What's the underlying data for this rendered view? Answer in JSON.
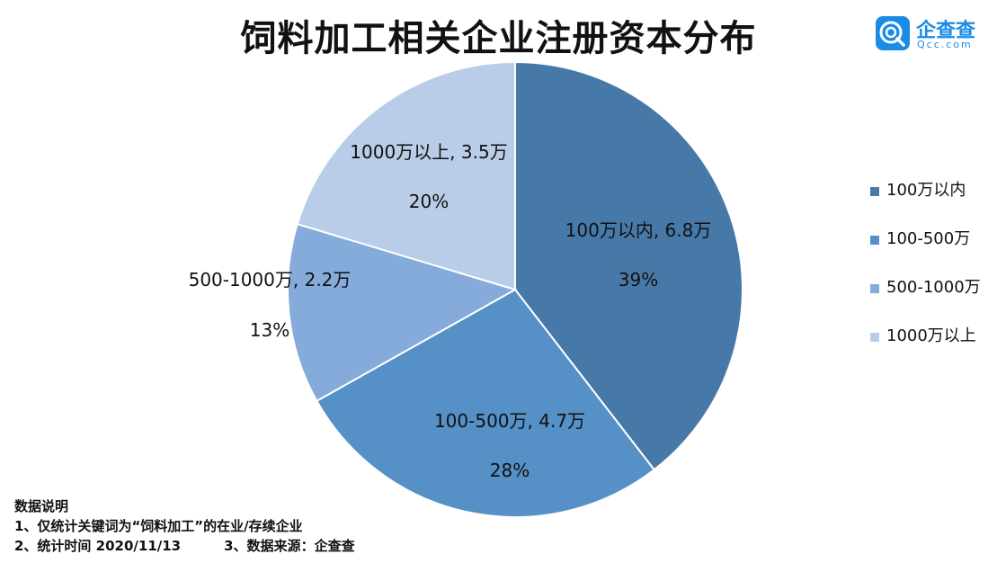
{
  "title": "饲料加工相关企业注册资本分布",
  "logo": {
    "name": "企查查",
    "url": "Qcc.com",
    "icon": "qcc-logo-icon",
    "color": "#1a8be6"
  },
  "chart_data": {
    "type": "pie",
    "title": "饲料加工相关企业注册资本分布",
    "categories": [
      "100万以内",
      "100-500万",
      "500-1000万",
      "1000万以上"
    ],
    "values": [
      6.8,
      4.7,
      2.2,
      3.5
    ],
    "value_labels": [
      "6.8万",
      "4.7万",
      "2.2万",
      "3.5万"
    ],
    "percent_labels": [
      "39%",
      "28%",
      "13%",
      "20%"
    ],
    "colors": [
      "#4779a8",
      "#5590c7",
      "#84abda",
      "#b9cde8"
    ],
    "legend_position": "right",
    "start": "12 o'clock",
    "direction": "clockwise"
  },
  "legend": [
    "100万以内",
    "100-500万",
    "500-1000万",
    "1000万以上"
  ],
  "notes": {
    "heading": "数据说明",
    "line1": "1、仅统计关键词为“饲料加工”的在业/存续企业",
    "line2a": "2、统计时间  2020/11/13",
    "line2b": "3、数据来源：企查查"
  }
}
